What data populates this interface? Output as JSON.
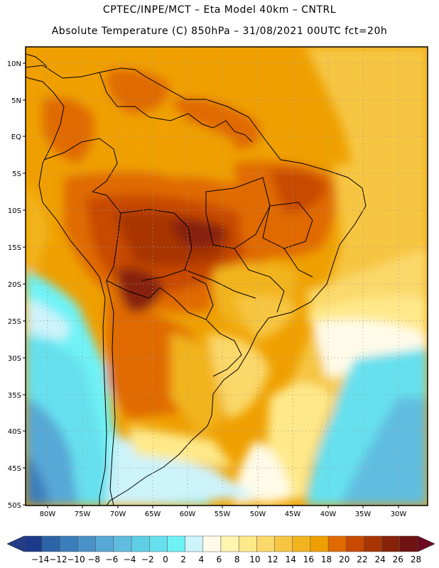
{
  "header": {
    "line1": "CPTEC/INPE/MCT –  Eta Model 40km – CNTRL",
    "line2": "Absolute Temperature (C) 850hPa – 31/08/2021 00UTC fct=20h"
  },
  "axes": {
    "lat_labels": [
      "10N",
      "5N",
      "EQ",
      "5S",
      "10S",
      "15S",
      "20S",
      "25S",
      "30S",
      "35S",
      "40S",
      "45S",
      "50S"
    ],
    "lon_labels": [
      "80W",
      "75W",
      "70W",
      "65W",
      "60W",
      "55W",
      "50W",
      "45W",
      "40W",
      "35W",
      "30W"
    ]
  },
  "colorbar": {
    "labels": [
      "-14",
      "-12",
      "-10",
      "-8",
      "-6",
      "-4",
      "-2",
      "0",
      "2",
      "4",
      "6",
      "8",
      "10",
      "12",
      "14",
      "16",
      "18",
      "20",
      "22",
      "24",
      "26",
      "28"
    ],
    "colors": [
      "#1d3a8a",
      "#2c64a8",
      "#3b7ebc",
      "#4a92c8",
      "#57a8d6",
      "#60bde0",
      "#5fcfe6",
      "#66e0ee",
      "#6ff2f6",
      "#cdf3fb",
      "#fffbe8",
      "#fff5b0",
      "#fee98a",
      "#fbd86a",
      "#f6c643",
      "#f2b41e",
      "#efa000",
      "#e06a00",
      "#c84a00",
      "#a83400",
      "#86210a",
      "#6f1212"
    ],
    "under_color": "#223d88",
    "over_color": "#6e0b24"
  }
}
